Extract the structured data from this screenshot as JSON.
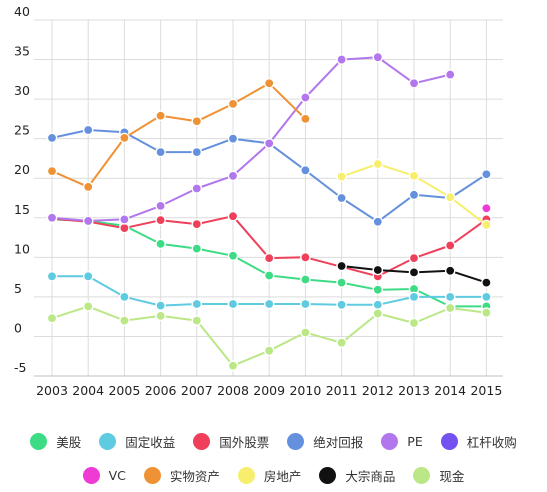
{
  "chart_data": {
    "type": "line",
    "title": "",
    "xlabel": "",
    "ylabel": "",
    "ylim": [
      -5,
      40
    ],
    "yticks": [
      "40",
      "35",
      "30",
      "25",
      "20",
      "15",
      "10",
      "5",
      "0",
      "-5"
    ],
    "categories": [
      "2003",
      "2004",
      "2005",
      "2006",
      "2007",
      "2008",
      "2009",
      "2010",
      "2011",
      "2012",
      "2013",
      "2014",
      "2015"
    ],
    "grid": true,
    "legend_position": "bottom",
    "series": [
      {
        "name": "美股",
        "color": "#3ddc84",
        "values": [
          14.8,
          14.6,
          14.0,
          11.7,
          11.1,
          10.2,
          7.7,
          7.2,
          6.8,
          5.9,
          6.0,
          3.8,
          3.8
        ]
      },
      {
        "name": "固定收益",
        "color": "#5ecbe0",
        "values": [
          7.6,
          7.6,
          5.0,
          3.9,
          4.1,
          4.1,
          4.1,
          4.1,
          4.0,
          4.0,
          5.0,
          5.0,
          5.0
        ]
      },
      {
        "name": "国外股票",
        "color": "#ef3f5a",
        "values": [
          14.9,
          14.5,
          13.7,
          14.7,
          14.2,
          15.2,
          9.9,
          10.0,
          8.8,
          7.6,
          9.9,
          11.5,
          14.8
        ]
      },
      {
        "name": "绝对回报",
        "color": "#6490dd",
        "values": [
          25.1,
          26.1,
          25.8,
          23.3,
          23.3,
          25.0,
          24.4,
          21.0,
          17.5,
          14.5,
          17.9,
          17.5,
          20.5
        ]
      },
      {
        "name": "PE",
        "color": "#b277ec",
        "values": [
          15.0,
          14.6,
          14.8,
          16.5,
          18.7,
          20.3,
          24.4,
          30.2,
          35.0,
          35.3,
          32.0,
          33.1,
          null
        ]
      },
      {
        "name": "杠杆收购",
        "color": "#7452f0",
        "values": [
          null,
          null,
          null,
          null,
          null,
          null,
          null,
          null,
          null,
          null,
          null,
          null,
          null
        ]
      },
      {
        "name": "VC",
        "color": "#f03ad6",
        "values": [
          null,
          null,
          null,
          null,
          null,
          null,
          null,
          null,
          null,
          null,
          null,
          null,
          16.2
        ]
      },
      {
        "name": "实物资产",
        "color": "#ef9235",
        "values": [
          20.9,
          18.9,
          25.1,
          27.9,
          27.2,
          29.4,
          32.0,
          27.5,
          null,
          null,
          null,
          null,
          null
        ]
      },
      {
        "name": "房地产",
        "color": "#f7ee6e",
        "values": [
          null,
          null,
          null,
          null,
          null,
          null,
          null,
          null,
          20.2,
          21.8,
          20.3,
          17.6,
          14.1
        ]
      },
      {
        "name": "大宗商品",
        "color": "#111111",
        "values": [
          null,
          null,
          null,
          null,
          null,
          null,
          null,
          null,
          8.9,
          8.4,
          8.1,
          8.3,
          6.8
        ]
      },
      {
        "name": "现金",
        "color": "#bbe786",
        "values": [
          2.3,
          3.8,
          2.0,
          2.6,
          2.0,
          -3.7,
          -1.8,
          0.5,
          -0.8,
          2.9,
          1.7,
          3.6,
          3.0
        ]
      }
    ]
  },
  "legend_rows": [
    [
      0,
      1,
      2,
      3,
      4,
      5
    ],
    [
      6,
      7,
      8,
      9,
      10
    ]
  ]
}
